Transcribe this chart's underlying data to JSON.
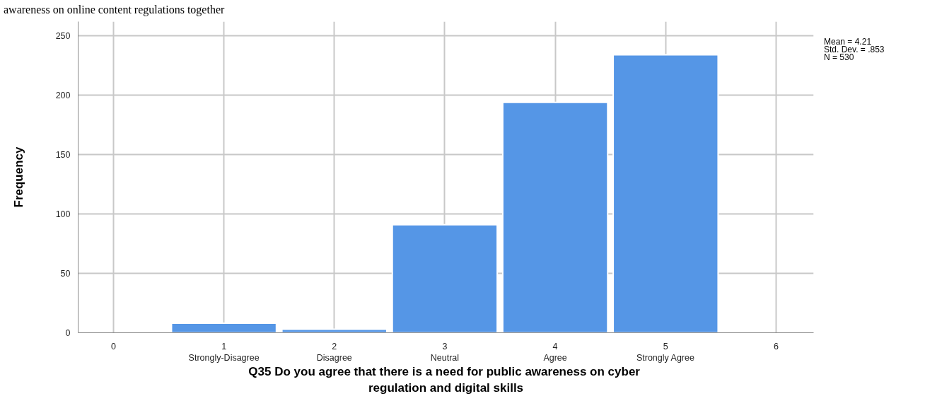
{
  "chart_data": {
    "type": "bar",
    "x": [
      1,
      2,
      3,
      4,
      5
    ],
    "values": [
      8,
      3,
      91,
      194,
      234
    ],
    "color": "#5596e6",
    "xlim": [
      -0.32,
      6.34
    ],
    "ylim": [
      0,
      262
    ],
    "xticks": [
      {
        "value": 0,
        "label": "0"
      },
      {
        "value": 1,
        "label": "1\nStrongly-Disagree"
      },
      {
        "value": 2,
        "label": "2\nDisagree"
      },
      {
        "value": 3,
        "label": "3\nNeutral"
      },
      {
        "value": 4,
        "label": "4\nAgree"
      },
      {
        "value": 5,
        "label": "5\nStrongly Agree"
      },
      {
        "value": 6,
        "label": "6"
      }
    ],
    "yticks": [
      0,
      50,
      100,
      150,
      200,
      250
    ],
    "xlabel": "Q35 Do you agree that there is a need for  public awareness on cyber regulation and digital skills",
    "ylabel": "Frequency",
    "grid": true,
    "annotations": [
      "awareness on online content regulations together",
      "Mean = 4.21",
      "Std. Dev. = .853",
      "N = 530"
    ]
  }
}
